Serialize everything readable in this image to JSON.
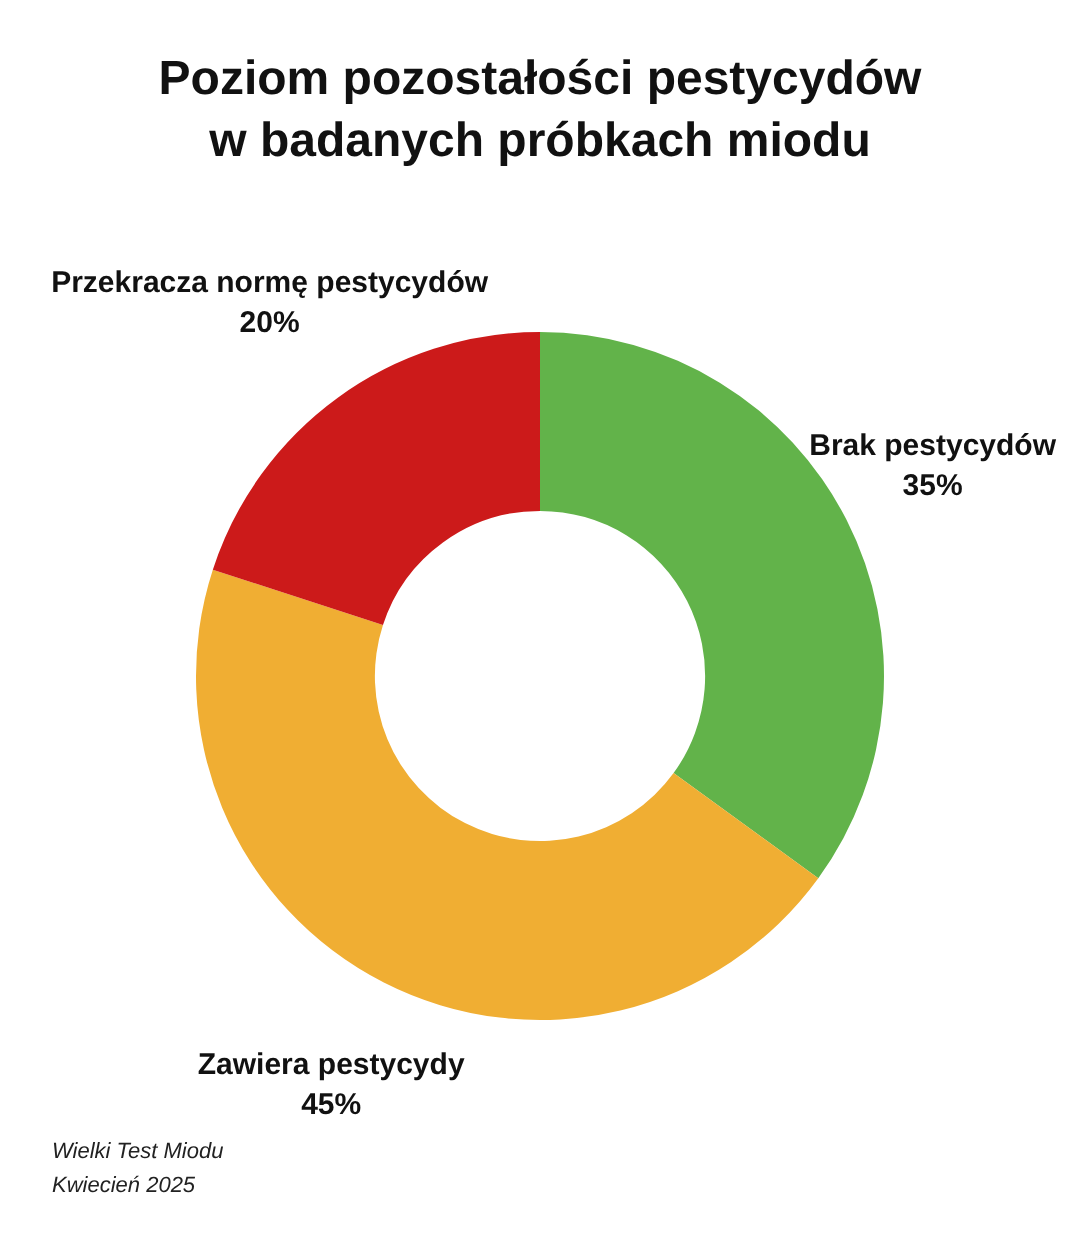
{
  "chart_data": {
    "type": "donut",
    "title": "Poziom pozostałości pestycydów\nw badanych próbkach miodu",
    "categories": [
      "Brak pestycydów",
      "Zawiera pestycydy",
      "Przekracza normę pestycydów"
    ],
    "values": [
      35,
      45,
      20
    ],
    "colors": [
      "#62b34a",
      "#f0ae33",
      "#cc1a1a"
    ],
    "value_labels": [
      "35%",
      "45%",
      "20%"
    ],
    "legend": false,
    "annotations": [
      "Wielki Test Miodu",
      "Kwiecień 2025"
    ]
  }
}
